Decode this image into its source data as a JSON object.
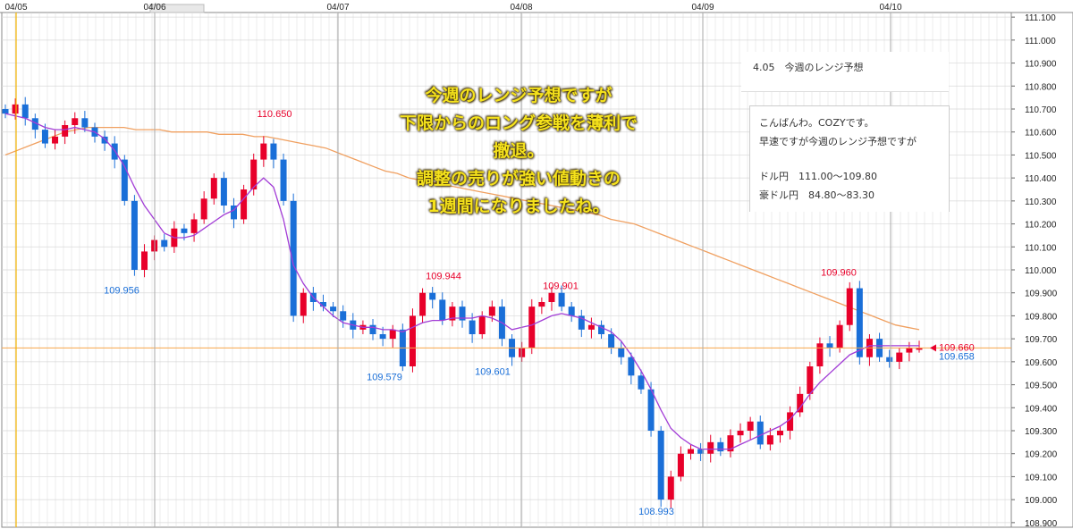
{
  "chart_data": {
    "type": "candlestick",
    "instrument_note": "USD/JPY",
    "ylim": [
      108.88,
      111.12
    ],
    "y_ticks": [
      "111.100",
      "111.000",
      "110.900",
      "110.800",
      "110.700",
      "110.600",
      "110.500",
      "110.400",
      "110.300",
      "110.200",
      "110.100",
      "110.000",
      "109.900",
      "109.800",
      "109.700",
      "109.600",
      "109.500",
      "109.400",
      "109.300",
      "109.200",
      "109.100",
      "109.000",
      "108.900"
    ],
    "x_dates": [
      "04/05",
      "04/06",
      "04/07",
      "04/08",
      "04/09",
      "04/10"
    ],
    "current_price": "109.660",
    "current_price_2": "109.658",
    "current_price_value": 109.66,
    "annotations": [
      {
        "label": "110.650",
        "value": 110.65,
        "color": "#e8002a"
      },
      {
        "label": "109.956",
        "value": 109.956,
        "color": "#1a6fd8"
      },
      {
        "label": "109.944",
        "value": 109.944,
        "color": "#e8002a"
      },
      {
        "label": "109.901",
        "value": 109.901,
        "color": "#e8002a"
      },
      {
        "label": "109.579",
        "value": 109.579,
        "color": "#1a6fd8"
      },
      {
        "label": "109.601",
        "value": 109.601,
        "color": "#1a6fd8"
      },
      {
        "label": "108.993",
        "value": 108.993,
        "color": "#1a6fd8"
      },
      {
        "label": "109.960",
        "value": 109.96,
        "color": "#e8002a"
      }
    ],
    "closes": [
      110.68,
      110.72,
      110.66,
      110.61,
      110.55,
      110.58,
      110.63,
      110.66,
      110.62,
      110.58,
      110.55,
      110.48,
      110.3,
      110.0,
      110.08,
      110.13,
      110.1,
      110.18,
      110.16,
      110.22,
      110.31,
      110.4,
      110.28,
      110.22,
      110.35,
      110.48,
      110.55,
      110.48,
      110.3,
      109.8,
      109.9,
      109.86,
      109.84,
      109.82,
      109.78,
      109.74,
      109.76,
      109.72,
      109.7,
      109.74,
      109.58,
      109.8,
      109.9,
      109.87,
      109.78,
      109.84,
      109.78,
      109.72,
      109.8,
      109.84,
      109.7,
      109.62,
      109.66,
      109.84,
      109.86,
      109.9,
      109.84,
      109.8,
      109.74,
      109.76,
      109.72,
      109.66,
      109.62,
      109.54,
      109.48,
      109.3,
      109.0,
      109.1,
      109.2,
      109.22,
      109.2,
      109.25,
      109.21,
      109.28,
      109.3,
      109.34,
      109.24,
      109.28,
      109.3,
      109.38,
      109.46,
      109.58,
      109.68,
      109.66,
      109.76,
      109.92,
      109.62,
      109.7,
      109.62,
      109.6,
      109.64,
      109.66,
      109.66
    ],
    "ma_fast": [
      110.68,
      110.67,
      110.66,
      110.64,
      110.62,
      110.61,
      110.61,
      110.62,
      110.61,
      110.6,
      110.57,
      110.52,
      110.45,
      110.36,
      110.28,
      110.22,
      110.16,
      110.14,
      110.14,
      110.15,
      110.18,
      110.21,
      110.24,
      110.26,
      110.31,
      110.36,
      110.4,
      110.36,
      110.22,
      110.02,
      109.94,
      109.88,
      109.84,
      109.8,
      109.77,
      109.76,
      109.75,
      109.75,
      109.74,
      109.74,
      109.73,
      109.75,
      109.77,
      109.78,
      109.78,
      109.79,
      109.79,
      109.79,
      109.8,
      109.79,
      109.77,
      109.74,
      109.75,
      109.76,
      109.78,
      109.8,
      109.81,
      109.8,
      109.79,
      109.77,
      109.75,
      109.73,
      109.69,
      109.63,
      109.56,
      109.48,
      109.39,
      109.31,
      109.27,
      109.24,
      109.22,
      109.22,
      109.22,
      109.22,
      109.24,
      109.26,
      109.28,
      109.3,
      109.32,
      109.35,
      109.4,
      109.46,
      109.51,
      109.55,
      109.59,
      109.63,
      109.65,
      109.67,
      109.67,
      109.67,
      109.67,
      109.67,
      109.67
    ],
    "ma_slow": [
      110.5,
      110.52,
      110.54,
      110.56,
      110.58,
      110.6,
      110.61,
      110.62,
      110.62,
      110.62,
      110.62,
      110.61,
      110.61,
      110.61,
      110.6,
      110.6,
      110.6,
      110.6,
      110.59,
      110.59,
      110.59,
      110.58,
      110.58,
      110.57,
      110.56,
      110.55,
      110.54,
      110.53,
      110.51,
      110.49,
      110.47,
      110.45,
      110.43,
      110.42,
      110.4,
      110.39,
      110.38,
      110.37,
      110.36,
      110.35,
      110.34,
      110.33,
      110.32,
      110.31,
      110.3,
      110.29,
      110.28,
      110.27,
      110.26,
      110.25,
      110.24,
      110.22,
      110.21,
      110.2,
      110.18,
      110.16,
      110.14,
      110.12,
      110.1,
      110.08,
      110.06,
      110.04,
      110.02,
      110.0,
      109.98,
      109.96,
      109.94,
      109.92,
      109.9,
      109.88,
      109.86,
      109.84,
      109.82,
      109.8,
      109.78,
      109.76,
      109.75,
      109.74
    ]
  },
  "overlay": {
    "line1": "今週のレンジ予想ですが",
    "line2": "下限からのロング参戦を薄利で",
    "line3": "撤退。",
    "line4": "調整の売りが強い値動きの",
    "line5": "1週間になりましたね。"
  },
  "post": {
    "title": "4.05　今週のレンジ予想",
    "greeting": "こんばんわ。COZYです。",
    "intro": "早速ですが今週のレンジ予想ですが",
    "usdjpy": "ドル円　111.00～109.80",
    "audusd": "豪ドル円　84.80～83.30"
  },
  "colors": {
    "up": "#e8002a",
    "down": "#1a6fd8",
    "ma_fast": "#a23cd6",
    "ma_slow": "#f0a060",
    "price_line": "#f7a64a",
    "grid": "#d9d9d9"
  }
}
